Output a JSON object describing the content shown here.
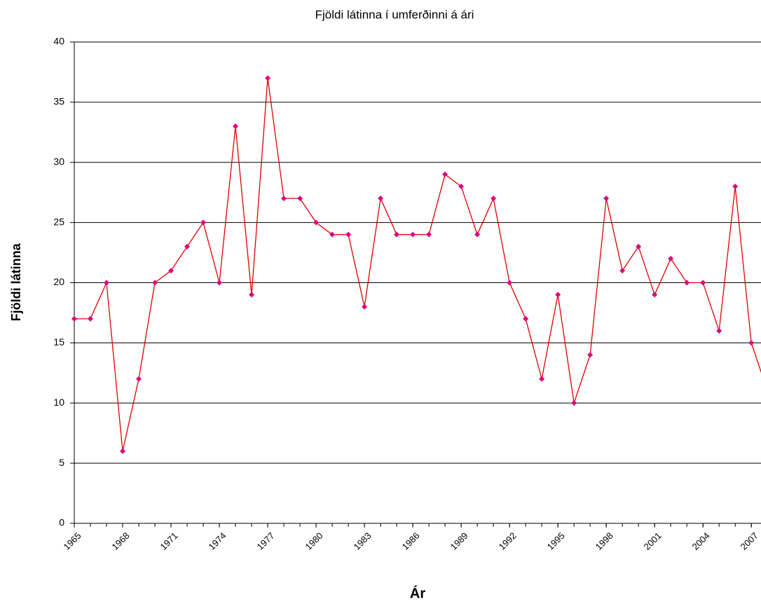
{
  "chart_data": {
    "type": "line",
    "title": "Fjöldi látinna í umferðinni á ári",
    "x_label": "Ár",
    "y_label": "Fjöldi látinna",
    "x": [
      1965,
      1966,
      1967,
      1968,
      1969,
      1970,
      1971,
      1972,
      1973,
      1974,
      1975,
      1976,
      1977,
      1978,
      1979,
      1980,
      1981,
      1982,
      1983,
      1984,
      1985,
      1986,
      1987,
      1988,
      1989,
      1990,
      1991,
      1992,
      1993,
      1994,
      1995,
      1996,
      1997,
      1998,
      1999,
      2000,
      2001,
      2002,
      2003,
      2004,
      2005,
      2006,
      2007,
      2008
    ],
    "series": [
      {
        "name": "Fjöldi látinna",
        "color": "#e00000",
        "marker_color": "#e0007f",
        "values": [
          17,
          17,
          20,
          6,
          12,
          20,
          21,
          23,
          25,
          20,
          33,
          19,
          37,
          27,
          27,
          25,
          24,
          24,
          18,
          27,
          24,
          24,
          24,
          29,
          28,
          24,
          27,
          20,
          17,
          12,
          19,
          10,
          14,
          27,
          21,
          23,
          19,
          22,
          20,
          20,
          16,
          28,
          15,
          11
        ]
      }
    ],
    "xlim": [
      1965,
      2007.6
    ],
    "xticks": [
      1965,
      1968,
      1971,
      1974,
      1977,
      1980,
      1983,
      1986,
      1989,
      1992,
      1995,
      1998,
      2001,
      2004,
      2007
    ],
    "ylim": [
      0,
      40
    ],
    "yticks": [
      0,
      5,
      10,
      15,
      20,
      25,
      30,
      35,
      40
    ],
    "grid": true
  }
}
